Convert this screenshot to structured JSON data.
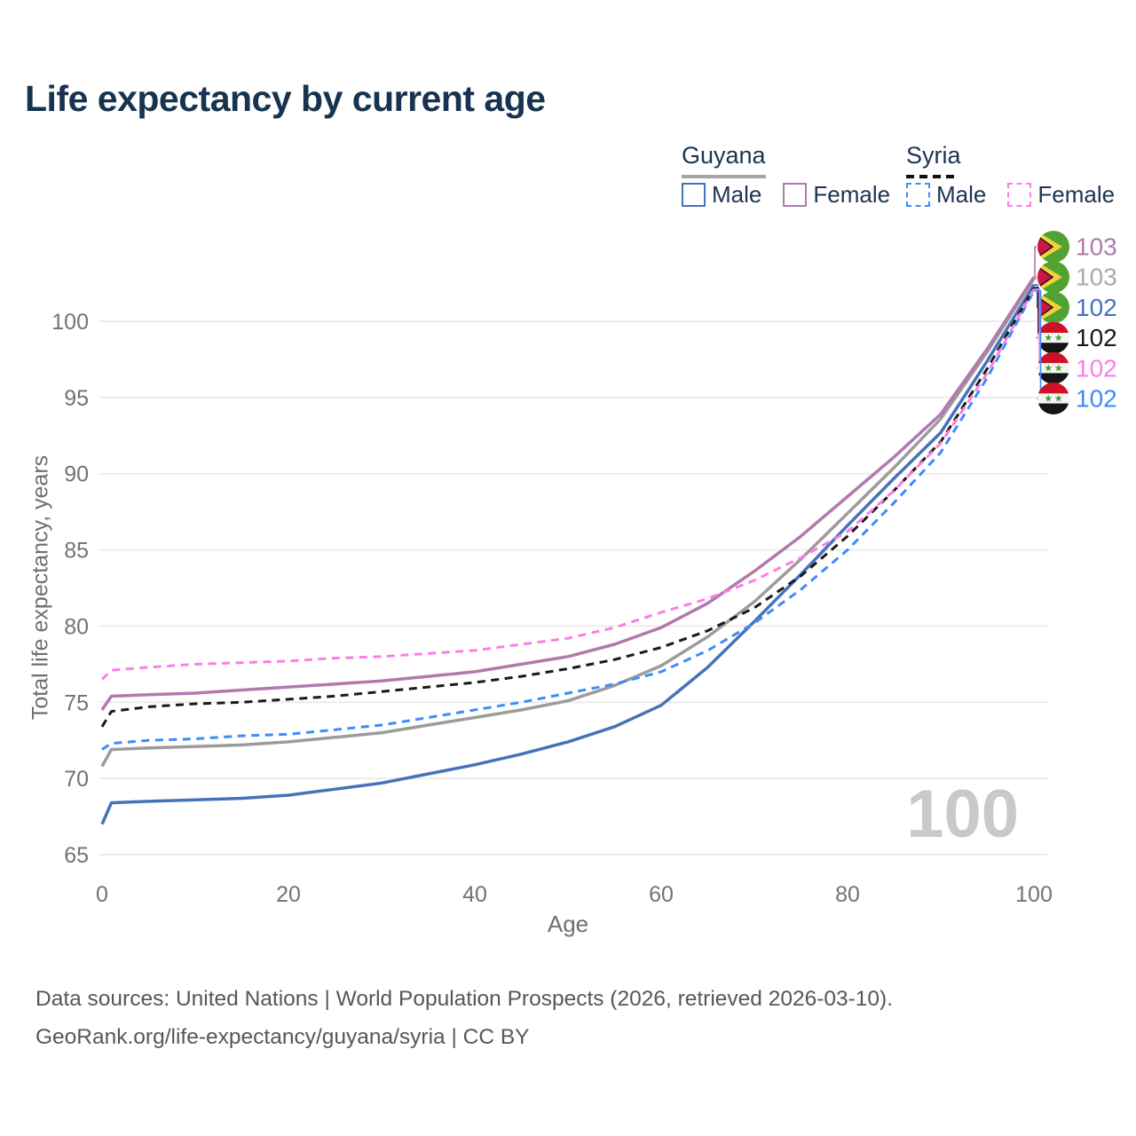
{
  "title": "Life expectancy by current age",
  "watermark": "100",
  "legend": {
    "groups": [
      {
        "label": "Guyana",
        "underline": "solid",
        "items": [
          {
            "label": "Male",
            "color": "#4573b9",
            "dashed": false
          },
          {
            "label": "Female",
            "color": "#b279ad",
            "dashed": false
          }
        ]
      },
      {
        "label": "Syria",
        "underline": "dashed",
        "items": [
          {
            "label": "Male",
            "color": "#3e8bfc",
            "dashed": true
          },
          {
            "label": "Female",
            "color": "#fc7ce8",
            "dashed": true
          }
        ]
      }
    ]
  },
  "axes": {
    "x": {
      "label": "Age",
      "ticks": [
        0,
        20,
        40,
        60,
        80,
        100
      ],
      "min": 0,
      "max": 100
    },
    "y": {
      "label": "Total life expectancy, years",
      "ticks": [
        65,
        70,
        75,
        80,
        85,
        90,
        95,
        100
      ],
      "min": 65,
      "max": 100
    }
  },
  "chart_data": {
    "type": "line",
    "title": "Life expectancy by current age",
    "xlabel": "Age",
    "ylabel": "Total life expectancy, years",
    "xlim": [
      0,
      100
    ],
    "ylim": [
      65,
      100
    ],
    "grid": "horizontal",
    "legend_position": "top-right",
    "x": [
      0,
      1,
      5,
      10,
      15,
      20,
      25,
      30,
      35,
      40,
      45,
      50,
      55,
      60,
      65,
      70,
      75,
      80,
      85,
      90,
      95,
      100
    ],
    "series": [
      {
        "key": "guyana_male",
        "name": "Guyana Male",
        "color": "#4573b9",
        "dash": false,
        "values": [
          67.0,
          68.4,
          68.5,
          68.6,
          68.7,
          68.9,
          69.3,
          69.7,
          70.3,
          70.9,
          71.6,
          72.4,
          73.4,
          74.8,
          77.3,
          80.3,
          83.4,
          86.6,
          89.7,
          92.7,
          97.4,
          102.4
        ]
      },
      {
        "key": "guyana_total",
        "name": "Guyana",
        "color": "#9c9c9c",
        "dash": false,
        "values": [
          70.8,
          71.9,
          72.0,
          72.1,
          72.2,
          72.4,
          72.7,
          73.0,
          73.5,
          74.0,
          74.5,
          75.1,
          76.1,
          77.4,
          79.3,
          81.6,
          84.4,
          87.4,
          90.4,
          93.6,
          98.0,
          102.8
        ]
      },
      {
        "key": "guyana_female",
        "name": "Guyana Female",
        "color": "#b279ad",
        "dash": false,
        "values": [
          74.5,
          75.4,
          75.5,
          75.6,
          75.8,
          76.0,
          76.2,
          76.4,
          76.7,
          77.0,
          77.5,
          78.0,
          78.8,
          79.9,
          81.5,
          83.6,
          85.9,
          88.5,
          91.1,
          93.9,
          98.2,
          102.9
        ]
      },
      {
        "key": "syria_male",
        "name": "Syria Male",
        "color": "#3e8bfc",
        "dash": true,
        "values": [
          71.9,
          72.3,
          72.5,
          72.6,
          72.8,
          72.9,
          73.2,
          73.5,
          74.0,
          74.5,
          75.0,
          75.6,
          76.2,
          77.0,
          78.4,
          80.2,
          82.4,
          85.0,
          88.1,
          91.4,
          96.3,
          102.0
        ]
      },
      {
        "key": "syria_total",
        "name": "Syria",
        "color": "#1a1a1a",
        "dash": true,
        "values": [
          73.4,
          74.4,
          74.7,
          74.9,
          75.0,
          75.2,
          75.4,
          75.7,
          76.0,
          76.3,
          76.7,
          77.2,
          77.8,
          78.6,
          79.7,
          81.2,
          83.3,
          85.9,
          88.9,
          92.1,
          96.9,
          102.2
        ]
      },
      {
        "key": "syria_female",
        "name": "Syria Female",
        "color": "#fc7ce8",
        "dash": true,
        "values": [
          76.5,
          77.1,
          77.3,
          77.5,
          77.6,
          77.7,
          77.9,
          78.0,
          78.2,
          78.4,
          78.8,
          79.2,
          79.9,
          80.9,
          81.8,
          83.0,
          84.5,
          86.2,
          88.9,
          92.0,
          96.6,
          102.1
        ]
      }
    ]
  },
  "side_labels": [
    {
      "series": "guyana_female",
      "flag": "guyana",
      "value": "103",
      "color": "#b279ad"
    },
    {
      "series": "guyana_total",
      "flag": "guyana",
      "value": "103",
      "color": "#ababab"
    },
    {
      "series": "guyana_male",
      "flag": "guyana",
      "value": "102",
      "color": "#4573b9"
    },
    {
      "series": "syria_total",
      "flag": "syria",
      "value": "102",
      "color": "#1a1a1a"
    },
    {
      "series": "syria_female",
      "flag": "syria",
      "value": "102",
      "color": "#fc7ce8"
    },
    {
      "series": "syria_male",
      "flag": "syria",
      "value": "102",
      "color": "#3e8bfc"
    }
  ],
  "footer": {
    "line1": "Data sources: United Nations | World Population Prospects (2026, retrieved 2026-03-10).",
    "line2": "GeoRank.org/life-expectancy/guyana/syria | CC BY"
  }
}
